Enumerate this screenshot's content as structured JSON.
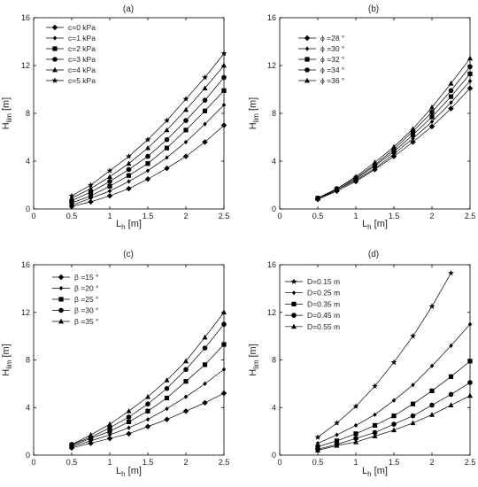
{
  "chart_data": [
    {
      "type": "line",
      "title": "(a)",
      "xlabel": {
        "main": "L",
        "sub": "h",
        "unit": " [m]"
      },
      "ylabel": {
        "main": "H",
        "sub": "lim",
        "unit": " [m]"
      },
      "xlim": [
        0,
        2.5
      ],
      "ylim": [
        0,
        16
      ],
      "xticks": [
        0,
        0.5,
        1,
        1.5,
        2,
        2.5
      ],
      "xtick_labels": [
        "0",
        "0.5",
        "1",
        "1.5",
        "2",
        "2.5"
      ],
      "yticks": [
        0,
        4,
        8,
        12,
        16
      ],
      "ytick_labels": [
        "0",
        "4",
        "8",
        "12",
        "16"
      ],
      "legend_position": "top-left",
      "x": [
        0.5,
        0.75,
        1.0,
        1.25,
        1.5,
        1.75,
        2.0,
        2.25,
        2.5
      ],
      "series": [
        {
          "name": "c=0 kPa",
          "marker": "diamond",
          "values": [
            0.2,
            0.6,
            1.1,
            1.7,
            2.5,
            3.4,
            4.4,
            5.6,
            7.0
          ]
        },
        {
          "name": "c=1 kPa",
          "marker": "diamond-small",
          "values": [
            0.3,
            0.9,
            1.5,
            2.3,
            3.2,
            4.3,
            5.6,
            7.1,
            8.7
          ]
        },
        {
          "name": "c=2 kPa",
          "marker": "square",
          "values": [
            0.5,
            1.1,
            1.9,
            2.8,
            3.8,
            5.1,
            6.6,
            8.2,
            9.9
          ]
        },
        {
          "name": "c=3 kPa",
          "marker": "circle",
          "values": [
            0.7,
            1.4,
            2.3,
            3.3,
            4.4,
            5.8,
            7.4,
            9.1,
            11.0
          ]
        },
        {
          "name": "c=4 kPa",
          "marker": "triangle",
          "values": [
            0.9,
            1.7,
            2.7,
            3.8,
            5.1,
            6.6,
            8.3,
            10.1,
            12.0
          ]
        },
        {
          "name": "c=5 kPa",
          "marker": "star",
          "values": [
            1.1,
            2.0,
            3.2,
            4.4,
            5.8,
            7.4,
            9.2,
            11.0,
            13.0
          ]
        }
      ]
    },
    {
      "type": "line",
      "title": "(b)",
      "xlabel": {
        "main": "L",
        "sub": "h",
        "unit": " [m]"
      },
      "ylabel": {
        "main": "H",
        "sub": "lim",
        "unit": " [m]"
      },
      "xlim": [
        0,
        2.5
      ],
      "ylim": [
        0,
        16
      ],
      "xticks": [
        0,
        0.5,
        1,
        1.5,
        2,
        2.5
      ],
      "xtick_labels": [
        "0",
        "0.5",
        "1",
        "1.5",
        "2",
        "2.5"
      ],
      "yticks": [
        0,
        4,
        8,
        12,
        16
      ],
      "ytick_labels": [
        "0",
        "4",
        "8",
        "12",
        "16"
      ],
      "legend_position": "top-left",
      "x": [
        0.5,
        0.75,
        1.0,
        1.25,
        1.5,
        1.75,
        2.0,
        2.25,
        2.5
      ],
      "series": [
        {
          "name": "ϕ =28 °",
          "marker": "diamond",
          "values": [
            0.8,
            1.5,
            2.3,
            3.3,
            4.4,
            5.6,
            6.9,
            8.4,
            10.1
          ]
        },
        {
          "name": "ϕ =30 °",
          "marker": "diamond-small",
          "values": [
            0.8,
            1.6,
            2.4,
            3.4,
            4.6,
            5.9,
            7.3,
            8.9,
            10.7
          ]
        },
        {
          "name": "ϕ =32 °",
          "marker": "square",
          "values": [
            0.9,
            1.6,
            2.5,
            3.6,
            4.8,
            6.2,
            7.7,
            9.4,
            11.3
          ]
        },
        {
          "name": "ϕ =34 °",
          "marker": "circle",
          "values": [
            0.9,
            1.7,
            2.6,
            3.7,
            5.0,
            6.5,
            8.1,
            9.9,
            11.9
          ]
        },
        {
          "name": "ϕ =36 °",
          "marker": "triangle",
          "values": [
            0.9,
            1.7,
            2.7,
            3.9,
            5.2,
            6.7,
            8.5,
            10.5,
            12.6
          ]
        }
      ]
    },
    {
      "type": "line",
      "title": "(c)",
      "xlabel": {
        "main": "L",
        "sub": "h",
        "unit": " [m]"
      },
      "ylabel": {
        "main": "H",
        "sub": "lim",
        "unit": " [m]"
      },
      "xlim": [
        0,
        2.5
      ],
      "ylim": [
        0,
        16
      ],
      "xticks": [
        0,
        0.5,
        1,
        1.5,
        2,
        2.5
      ],
      "xtick_labels": [
        "0",
        "0.5",
        "1",
        "1.5",
        "2",
        "2.5"
      ],
      "yticks": [
        0,
        4,
        8,
        12,
        16
      ],
      "ytick_labels": [
        "0",
        "4",
        "8",
        "12",
        "16"
      ],
      "legend_position": "top-left",
      "x": [
        0.5,
        0.75,
        1.0,
        1.25,
        1.5,
        1.75,
        2.0,
        2.25,
        2.5
      ],
      "series": [
        {
          "name": "β =15 °",
          "marker": "diamond",
          "values": [
            0.6,
            1.0,
            1.4,
            1.8,
            2.4,
            3.0,
            3.7,
            4.4,
            5.2
          ]
        },
        {
          "name": "β =20 °",
          "marker": "diamond-small",
          "values": [
            0.7,
            1.2,
            1.7,
            2.3,
            3.0,
            3.9,
            4.9,
            6.0,
            7.2
          ]
        },
        {
          "name": "β =25 °",
          "marker": "square",
          "values": [
            0.8,
            1.4,
            2.0,
            2.8,
            3.7,
            4.8,
            6.2,
            7.6,
            9.3
          ]
        },
        {
          "name": "β =30 °",
          "marker": "circle",
          "values": [
            0.9,
            1.5,
            2.3,
            3.2,
            4.3,
            5.6,
            7.2,
            9.0,
            11.0
          ]
        },
        {
          "name": "β =35 °",
          "marker": "triangle",
          "values": [
            0.9,
            1.7,
            2.6,
            3.7,
            4.9,
            6.3,
            7.9,
            9.9,
            12.0
          ]
        }
      ]
    },
    {
      "type": "line",
      "title": "(d)",
      "xlabel": {
        "main": "L",
        "sub": "h",
        "unit": " [m]"
      },
      "ylabel": {
        "main": "H",
        "sub": "lim",
        "unit": " [m]"
      },
      "xlim": [
        0,
        2.5
      ],
      "ylim": [
        0,
        16
      ],
      "xticks": [
        0,
        0.5,
        1,
        1.5,
        2,
        2.5
      ],
      "xtick_labels": [
        "0",
        "0.5",
        "1",
        "1.5",
        "2",
        "2.5"
      ],
      "yticks": [
        0,
        4,
        8,
        12,
        16
      ],
      "ytick_labels": [
        "0",
        "4",
        "8",
        "12",
        "16"
      ],
      "legend_position": "top-left",
      "x": [
        0.5,
        0.75,
        1.0,
        1.25,
        1.5,
        1.75,
        2.0,
        2.25,
        2.5
      ],
      "series": [
        {
          "name": "D=0.15 m",
          "marker": "star",
          "values": [
            1.5,
            2.7,
            4.1,
            5.8,
            7.8,
            10.0,
            12.5,
            15.3,
            null
          ]
        },
        {
          "name": "D=0.25 m",
          "marker": "diamond-small",
          "values": [
            1.0,
            1.7,
            2.5,
            3.4,
            4.6,
            5.9,
            7.5,
            9.2,
            11.0
          ]
        },
        {
          "name": "D=0.35 m",
          "marker": "square",
          "values": [
            0.7,
            1.2,
            1.8,
            2.5,
            3.3,
            4.3,
            5.4,
            6.6,
            7.9
          ]
        },
        {
          "name": "D=0.45 m",
          "marker": "circle",
          "values": [
            0.5,
            0.9,
            1.4,
            1.9,
            2.6,
            3.3,
            4.2,
            5.1,
            6.1
          ]
        },
        {
          "name": "D=0.55 m",
          "marker": "triangle",
          "values": [
            0.4,
            0.8,
            1.1,
            1.6,
            2.1,
            2.7,
            3.4,
            4.2,
            5.0
          ]
        }
      ]
    }
  ]
}
